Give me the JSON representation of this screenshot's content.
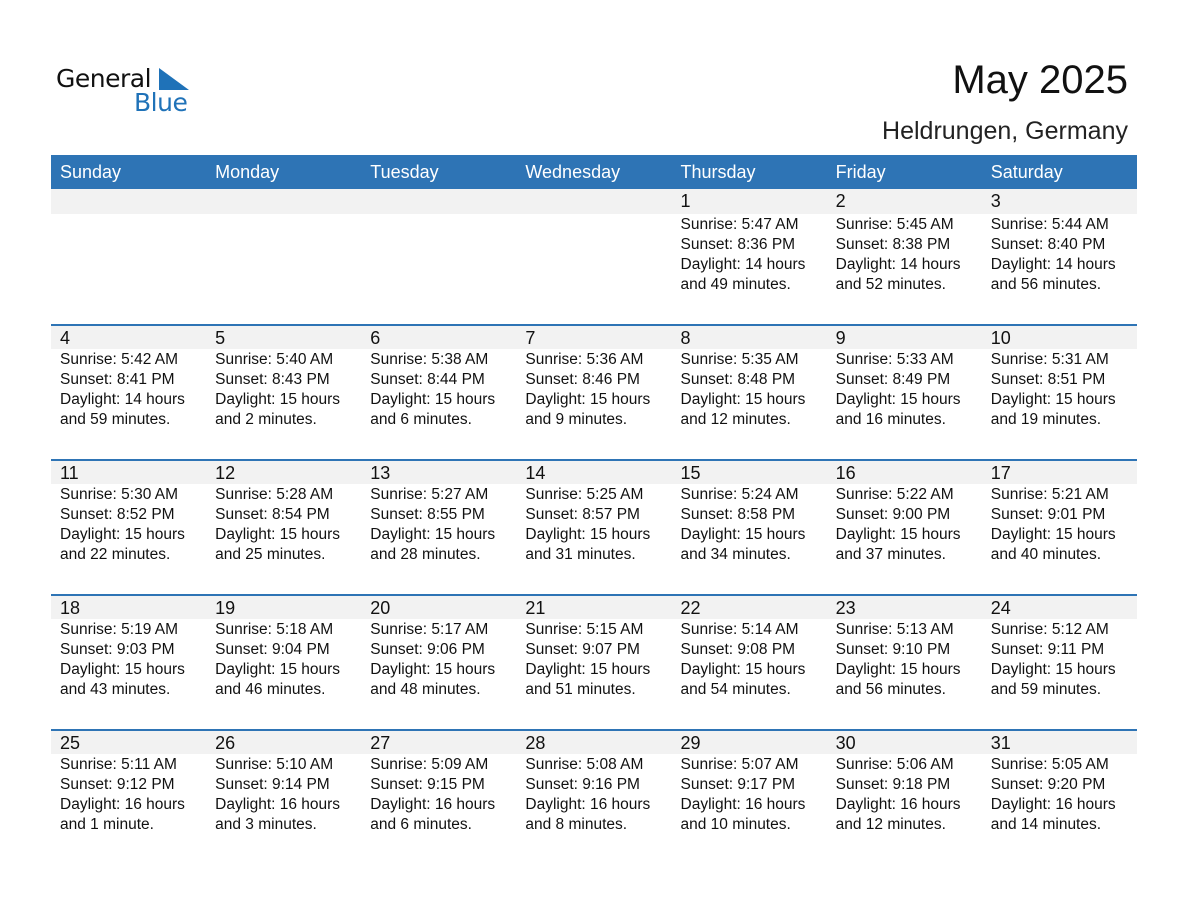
{
  "logo": {
    "word1": "General",
    "word2": "Blue"
  },
  "title": "May 2025",
  "location": "Heldrungen, Germany",
  "colors": {
    "header": "#2e74b5",
    "logo_blue": "#1f72b8",
    "day_strip": "#f2f2f2"
  },
  "weekdays": [
    "Sunday",
    "Monday",
    "Tuesday",
    "Wednesday",
    "Thursday",
    "Friday",
    "Saturday"
  ],
  "weeks": [
    [
      null,
      null,
      null,
      null,
      {
        "day": "1",
        "sunrise": "Sunrise: 5:47 AM",
        "sunset": "Sunset: 8:36 PM",
        "daylight": "Daylight: 14 hours",
        "minutes": "and 49 minutes."
      },
      {
        "day": "2",
        "sunrise": "Sunrise: 5:45 AM",
        "sunset": "Sunset: 8:38 PM",
        "daylight": "Daylight: 14 hours",
        "minutes": "and 52 minutes."
      },
      {
        "day": "3",
        "sunrise": "Sunrise: 5:44 AM",
        "sunset": "Sunset: 8:40 PM",
        "daylight": "Daylight: 14 hours",
        "minutes": "and 56 minutes."
      }
    ],
    [
      {
        "day": "4",
        "sunrise": "Sunrise: 5:42 AM",
        "sunset": "Sunset: 8:41 PM",
        "daylight": "Daylight: 14 hours",
        "minutes": "and 59 minutes."
      },
      {
        "day": "5",
        "sunrise": "Sunrise: 5:40 AM",
        "sunset": "Sunset: 8:43 PM",
        "daylight": "Daylight: 15 hours",
        "minutes": "and 2 minutes."
      },
      {
        "day": "6",
        "sunrise": "Sunrise: 5:38 AM",
        "sunset": "Sunset: 8:44 PM",
        "daylight": "Daylight: 15 hours",
        "minutes": "and 6 minutes."
      },
      {
        "day": "7",
        "sunrise": "Sunrise: 5:36 AM",
        "sunset": "Sunset: 8:46 PM",
        "daylight": "Daylight: 15 hours",
        "minutes": "and 9 minutes."
      },
      {
        "day": "8",
        "sunrise": "Sunrise: 5:35 AM",
        "sunset": "Sunset: 8:48 PM",
        "daylight": "Daylight: 15 hours",
        "minutes": "and 12 minutes."
      },
      {
        "day": "9",
        "sunrise": "Sunrise: 5:33 AM",
        "sunset": "Sunset: 8:49 PM",
        "daylight": "Daylight: 15 hours",
        "minutes": "and 16 minutes."
      },
      {
        "day": "10",
        "sunrise": "Sunrise: 5:31 AM",
        "sunset": "Sunset: 8:51 PM",
        "daylight": "Daylight: 15 hours",
        "minutes": "and 19 minutes."
      }
    ],
    [
      {
        "day": "11",
        "sunrise": "Sunrise: 5:30 AM",
        "sunset": "Sunset: 8:52 PM",
        "daylight": "Daylight: 15 hours",
        "minutes": "and 22 minutes."
      },
      {
        "day": "12",
        "sunrise": "Sunrise: 5:28 AM",
        "sunset": "Sunset: 8:54 PM",
        "daylight": "Daylight: 15 hours",
        "minutes": "and 25 minutes."
      },
      {
        "day": "13",
        "sunrise": "Sunrise: 5:27 AM",
        "sunset": "Sunset: 8:55 PM",
        "daylight": "Daylight: 15 hours",
        "minutes": "and 28 minutes."
      },
      {
        "day": "14",
        "sunrise": "Sunrise: 5:25 AM",
        "sunset": "Sunset: 8:57 PM",
        "daylight": "Daylight: 15 hours",
        "minutes": "and 31 minutes."
      },
      {
        "day": "15",
        "sunrise": "Sunrise: 5:24 AM",
        "sunset": "Sunset: 8:58 PM",
        "daylight": "Daylight: 15 hours",
        "minutes": "and 34 minutes."
      },
      {
        "day": "16",
        "sunrise": "Sunrise: 5:22 AM",
        "sunset": "Sunset: 9:00 PM",
        "daylight": "Daylight: 15 hours",
        "minutes": "and 37 minutes."
      },
      {
        "day": "17",
        "sunrise": "Sunrise: 5:21 AM",
        "sunset": "Sunset: 9:01 PM",
        "daylight": "Daylight: 15 hours",
        "minutes": "and 40 minutes."
      }
    ],
    [
      {
        "day": "18",
        "sunrise": "Sunrise: 5:19 AM",
        "sunset": "Sunset: 9:03 PM",
        "daylight": "Daylight: 15 hours",
        "minutes": "and 43 minutes."
      },
      {
        "day": "19",
        "sunrise": "Sunrise: 5:18 AM",
        "sunset": "Sunset: 9:04 PM",
        "daylight": "Daylight: 15 hours",
        "minutes": "and 46 minutes."
      },
      {
        "day": "20",
        "sunrise": "Sunrise: 5:17 AM",
        "sunset": "Sunset: 9:06 PM",
        "daylight": "Daylight: 15 hours",
        "minutes": "and 48 minutes."
      },
      {
        "day": "21",
        "sunrise": "Sunrise: 5:15 AM",
        "sunset": "Sunset: 9:07 PM",
        "daylight": "Daylight: 15 hours",
        "minutes": "and 51 minutes."
      },
      {
        "day": "22",
        "sunrise": "Sunrise: 5:14 AM",
        "sunset": "Sunset: 9:08 PM",
        "daylight": "Daylight: 15 hours",
        "minutes": "and 54 minutes."
      },
      {
        "day": "23",
        "sunrise": "Sunrise: 5:13 AM",
        "sunset": "Sunset: 9:10 PM",
        "daylight": "Daylight: 15 hours",
        "minutes": "and 56 minutes."
      },
      {
        "day": "24",
        "sunrise": "Sunrise: 5:12 AM",
        "sunset": "Sunset: 9:11 PM",
        "daylight": "Daylight: 15 hours",
        "minutes": "and 59 minutes."
      }
    ],
    [
      {
        "day": "25",
        "sunrise": "Sunrise: 5:11 AM",
        "sunset": "Sunset: 9:12 PM",
        "daylight": "Daylight: 16 hours",
        "minutes": "and 1 minute."
      },
      {
        "day": "26",
        "sunrise": "Sunrise: 5:10 AM",
        "sunset": "Sunset: 9:14 PM",
        "daylight": "Daylight: 16 hours",
        "minutes": "and 3 minutes."
      },
      {
        "day": "27",
        "sunrise": "Sunrise: 5:09 AM",
        "sunset": "Sunset: 9:15 PM",
        "daylight": "Daylight: 16 hours",
        "minutes": "and 6 minutes."
      },
      {
        "day": "28",
        "sunrise": "Sunrise: 5:08 AM",
        "sunset": "Sunset: 9:16 PM",
        "daylight": "Daylight: 16 hours",
        "minutes": "and 8 minutes."
      },
      {
        "day": "29",
        "sunrise": "Sunrise: 5:07 AM",
        "sunset": "Sunset: 9:17 PM",
        "daylight": "Daylight: 16 hours",
        "minutes": "and 10 minutes."
      },
      {
        "day": "30",
        "sunrise": "Sunrise: 5:06 AM",
        "sunset": "Sunset: 9:18 PM",
        "daylight": "Daylight: 16 hours",
        "minutes": "and 12 minutes."
      },
      {
        "day": "31",
        "sunrise": "Sunrise: 5:05 AM",
        "sunset": "Sunset: 9:20 PM",
        "daylight": "Daylight: 16 hours",
        "minutes": "and 14 minutes."
      }
    ]
  ]
}
